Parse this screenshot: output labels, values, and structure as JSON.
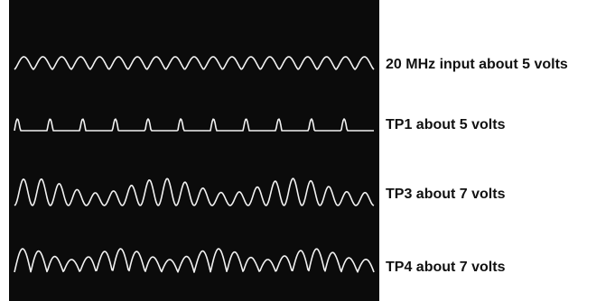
{
  "traces": [
    {
      "label": "20 MHz input about 5 volts"
    },
    {
      "label": "TP1 about 5 volts"
    },
    {
      "label": "TP3 about 7 volts"
    },
    {
      "label": "TP4 about 7 volts"
    }
  ]
}
